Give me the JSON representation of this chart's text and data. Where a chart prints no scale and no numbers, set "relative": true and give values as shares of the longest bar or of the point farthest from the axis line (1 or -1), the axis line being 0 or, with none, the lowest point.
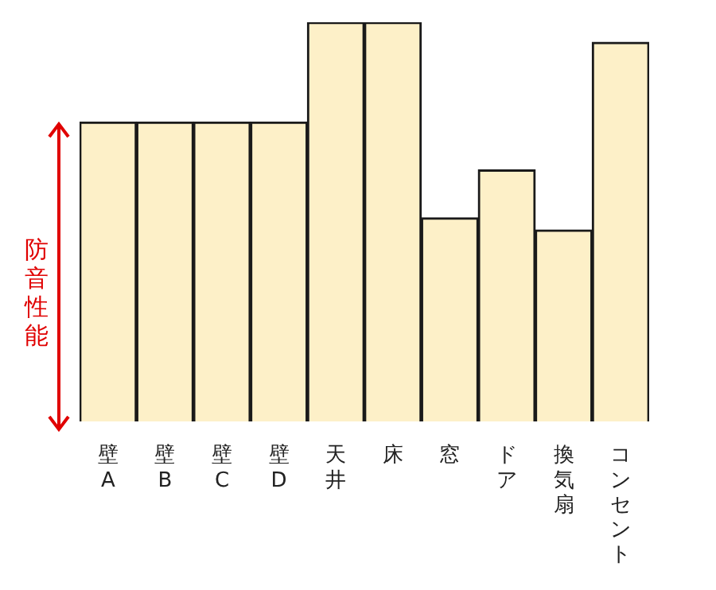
{
  "chart_data": {
    "type": "bar",
    "relative": true,
    "ylabel": "防音性能",
    "categories": [
      "壁A",
      "壁B",
      "壁C",
      "壁D",
      "天井",
      "床",
      "窓",
      "ドア",
      "換気扇",
      "コンセント"
    ],
    "values": [
      0.75,
      0.75,
      0.75,
      0.75,
      1,
      1,
      0.51,
      0.63,
      0.48,
      0.95
    ],
    "color": "#fdf0c8",
    "grid": false,
    "legend": false
  }
}
